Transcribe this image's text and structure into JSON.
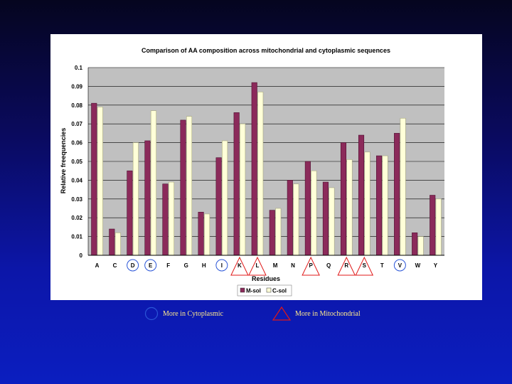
{
  "chart_data": {
    "type": "bar",
    "title": "Comparison of AA composition across mitochondrial and cytoplasmic sequences",
    "xlabel": "Residues",
    "ylabel": "Relative freequencies",
    "ylim": [
      0,
      0.1
    ],
    "yticks": [
      "0",
      "0.01",
      "0.02",
      "0.03",
      "0.04",
      "0.05",
      "0.06",
      "0.07",
      "0.08",
      "0.09",
      "0.1"
    ],
    "categories": [
      "A",
      "C",
      "D",
      "E",
      "F",
      "G",
      "H",
      "I",
      "K",
      "L",
      "M",
      "N",
      "P",
      "Q",
      "R",
      "S",
      "T",
      "V",
      "W",
      "Y"
    ],
    "series": [
      {
        "name": "M-sol",
        "color": "#8b2a5a",
        "values": [
          0.081,
          0.014,
          0.045,
          0.061,
          0.038,
          0.072,
          0.023,
          0.052,
          0.076,
          0.092,
          0.024,
          0.04,
          0.05,
          0.039,
          0.06,
          0.064,
          0.053,
          0.065,
          0.012,
          0.032
        ]
      },
      {
        "name": "C-sol",
        "color": "#ffffd8",
        "values": [
          0.079,
          0.012,
          0.06,
          0.077,
          0.039,
          0.074,
          0.022,
          0.061,
          0.07,
          0.087,
          0.025,
          0.038,
          0.045,
          0.036,
          0.051,
          0.055,
          0.053,
          0.073,
          0.01,
          0.03
        ]
      }
    ],
    "grid": true,
    "legend_position": "bottom-right",
    "plot_background": "#c0c0c0",
    "circled_categories": [
      "D",
      "E",
      "I",
      "V"
    ],
    "triangled_categories": [
      "K",
      "L",
      "P",
      "R",
      "S"
    ]
  },
  "key": {
    "cytoplasmic_label": "More in Cytoplasmic",
    "mitochondrial_label": "More in Mitochondrial"
  }
}
